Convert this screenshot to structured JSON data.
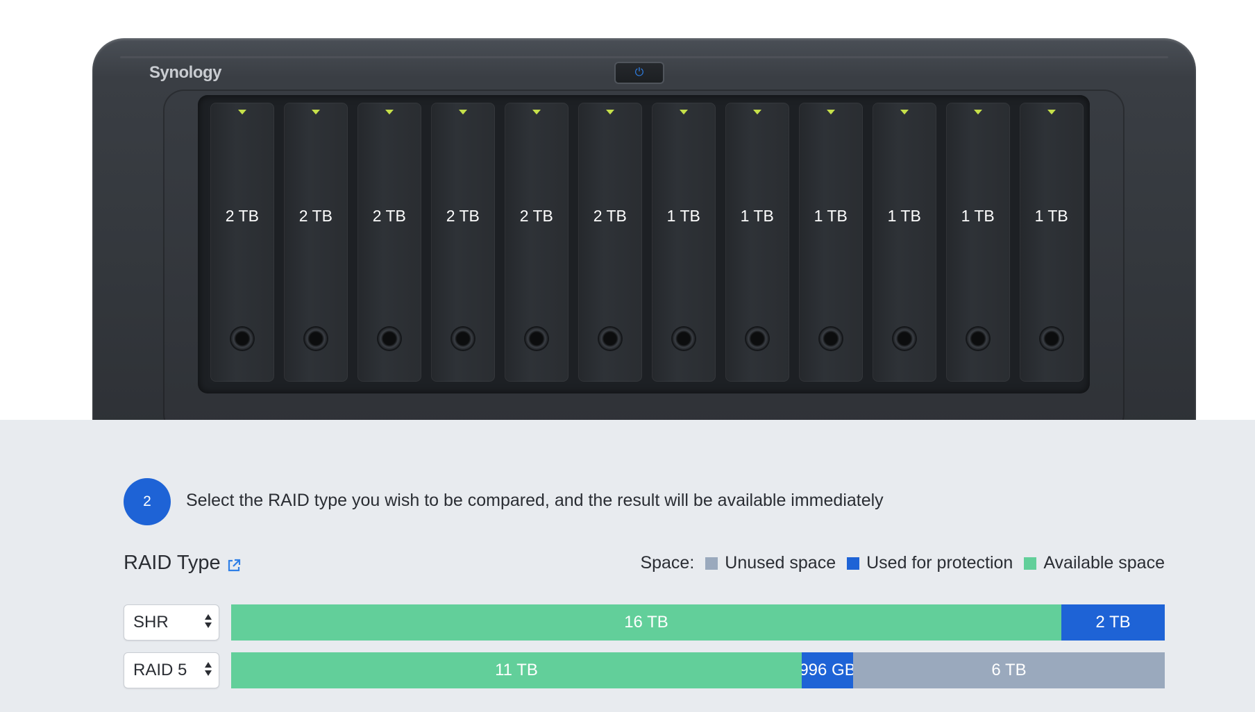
{
  "device": {
    "brand": "Synology",
    "bays": [
      {
        "label": "2 TB"
      },
      {
        "label": "2 TB"
      },
      {
        "label": "2 TB"
      },
      {
        "label": "2 TB"
      },
      {
        "label": "2 TB"
      },
      {
        "label": "2 TB"
      },
      {
        "label": "1 TB"
      },
      {
        "label": "1 TB"
      },
      {
        "label": "1 TB"
      },
      {
        "label": "1 TB"
      },
      {
        "label": "1 TB"
      },
      {
        "label": "1 TB"
      }
    ],
    "power_icon": "power-icon"
  },
  "step": {
    "number": "2",
    "text": "Select the RAID type you wish to be compared, and the result will be available immediately"
  },
  "raid_section": {
    "title": "RAID Type",
    "link_icon": "external-link-icon"
  },
  "legend": {
    "label": "Space:",
    "items": [
      {
        "label": "Unused space",
        "color": "#9aa9bd"
      },
      {
        "label": "Used for protection",
        "color": "#1e63d6"
      },
      {
        "label": "Available space",
        "color": "#62cf9a"
      }
    ]
  },
  "colors": {
    "available": "#62cf9a",
    "protection": "#1e63d6",
    "unused": "#9aa9bd",
    "accent": "#1e63d6"
  },
  "rows": [
    {
      "raid_type": "SHR",
      "segments": [
        {
          "kind": "available",
          "label": "16 TB",
          "fraction": 0.889
        },
        {
          "kind": "protection",
          "label": "2 TB",
          "fraction": 0.111
        }
      ]
    },
    {
      "raid_type": "RAID 5",
      "segments": [
        {
          "kind": "available",
          "label": "11 TB",
          "fraction": 0.611
        },
        {
          "kind": "protection",
          "label": "996 GB",
          "fraction": 0.055
        },
        {
          "kind": "unused",
          "label": "6 TB",
          "fraction": 0.334
        }
      ]
    }
  ]
}
